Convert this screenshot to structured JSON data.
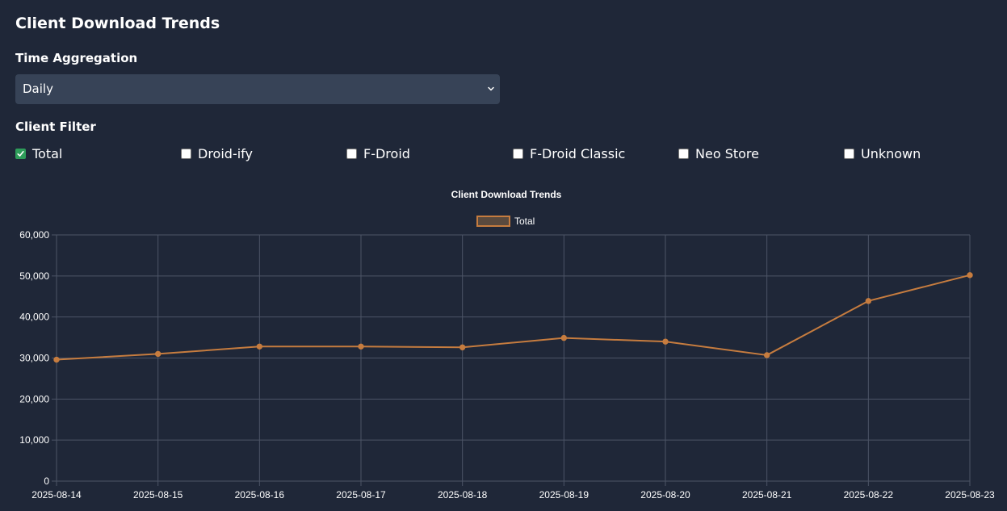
{
  "page": {
    "title": "Client Download Trends"
  },
  "aggregation": {
    "label": "Time Aggregation",
    "selected": "Daily"
  },
  "filter": {
    "label": "Client Filter",
    "options": [
      {
        "label": "Total",
        "checked": true
      },
      {
        "label": "Droid-ify",
        "checked": false
      },
      {
        "label": "F-Droid",
        "checked": false
      },
      {
        "label": "F-Droid Classic",
        "checked": false
      },
      {
        "label": "Neo Store",
        "checked": false
      },
      {
        "label": "Unknown",
        "checked": false
      }
    ]
  },
  "colors": {
    "background": "#1f2738",
    "series_line": "#c67c3f",
    "series_fill": "#5a4a3e",
    "grid": "#4c5466",
    "checkbox_checked": "#2e9d5a"
  },
  "chart_data": {
    "type": "line",
    "title": "Client Download Trends",
    "xlabel": "",
    "ylabel": "",
    "x": [
      "2025-08-14",
      "2025-08-15",
      "2025-08-16",
      "2025-08-17",
      "2025-08-18",
      "2025-08-19",
      "2025-08-20",
      "2025-08-21",
      "2025-08-22",
      "2025-08-23"
    ],
    "series": [
      {
        "name": "Total",
        "values": [
          29600,
          31000,
          32800,
          32800,
          32600,
          34900,
          34000,
          30700,
          43900,
          50200
        ]
      }
    ],
    "ylim": [
      0,
      60000
    ],
    "yticks": [
      "0",
      "10,000",
      "20,000",
      "30,000",
      "40,000",
      "50,000",
      "60,000"
    ],
    "grid": true,
    "legend_position": "top-center"
  }
}
